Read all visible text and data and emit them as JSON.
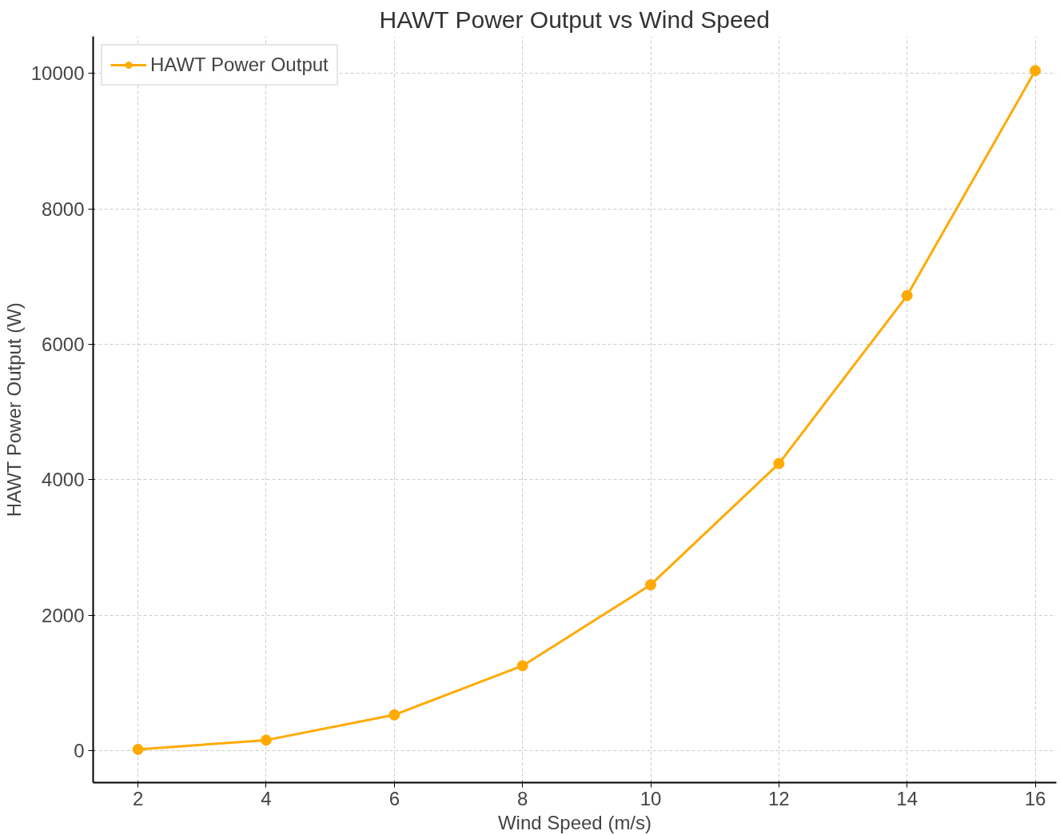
{
  "chart_data": {
    "type": "line",
    "title": "HAWT Power Output vs Wind Speed",
    "xlabel": "Wind Speed (m/s)",
    "ylabel": "HAWT Power Output (W)",
    "x": [
      2,
      4,
      6,
      8,
      10,
      12,
      14,
      16
    ],
    "series": [
      {
        "name": "HAWT Power Output",
        "color": "#ffaa00",
        "values": [
          20,
          157,
          530,
          1255,
          2450,
          4240,
          6720,
          10040
        ]
      }
    ],
    "xlim": [
      1.3,
      16.33
    ],
    "ylim": [
      -470,
      10546
    ],
    "xticks": [
      2,
      4,
      6,
      8,
      10,
      12,
      14,
      16
    ],
    "yticks": [
      0,
      2000,
      4000,
      6000,
      8000,
      10000
    ],
    "grid": true,
    "legend": "top left",
    "marker": "circle",
    "line_style": "solid"
  }
}
